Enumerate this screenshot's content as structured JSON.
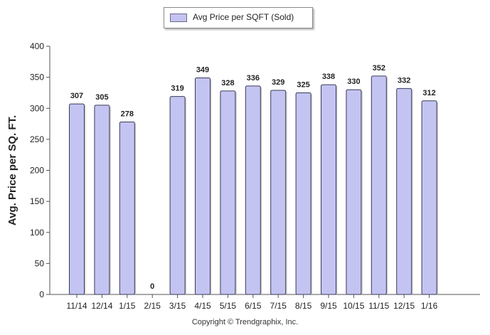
{
  "chart_data": {
    "type": "bar",
    "ylabel": "Avg. Price per SQ. FT.",
    "xlabel": "",
    "ylim": [
      0,
      400
    ],
    "yticks": [
      0,
      50,
      100,
      150,
      200,
      250,
      300,
      350,
      400
    ],
    "categories": [
      "11/14",
      "12/14",
      "1/15",
      "2/15",
      "3/15",
      "4/15",
      "5/15",
      "6/15",
      "7/15",
      "8/15",
      "9/15",
      "10/15",
      "11/15",
      "12/15",
      "1/16"
    ],
    "series": [
      {
        "name": "Avg Price per SQFT (Sold)",
        "values": [
          307,
          305,
          278,
          0,
          319,
          349,
          328,
          336,
          329,
          325,
          338,
          330,
          352,
          332,
          312
        ]
      }
    ],
    "bar_color": "#c4c4f2",
    "legend_position": "top-center",
    "grid": false
  },
  "footer": {
    "copyright": "Copyright © Trendgraphix, Inc."
  }
}
